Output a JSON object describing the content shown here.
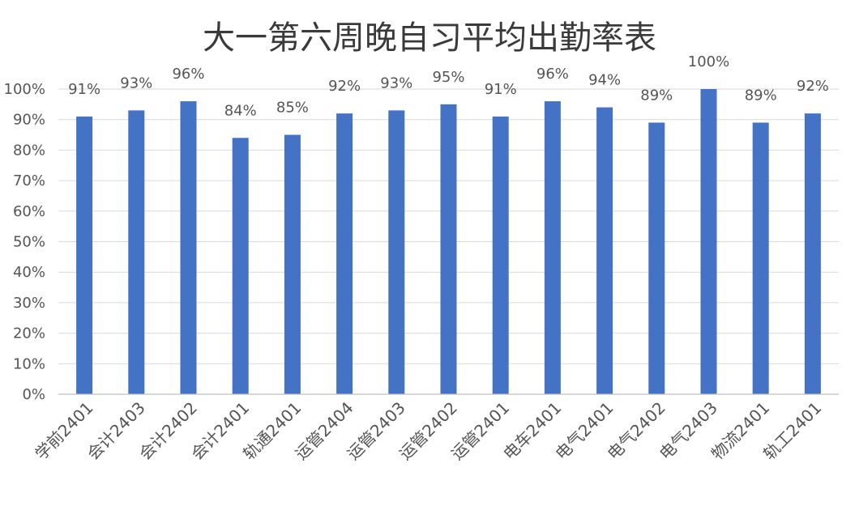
{
  "chart_data": {
    "type": "bar",
    "title": "大一第六周晚自习平均出勤率表",
    "xlabel": "",
    "ylabel": "",
    "categories": [
      "学前2401",
      "会计2403",
      "会计2402",
      "会计2401",
      "轨通2401",
      "运管2404",
      "运管2403",
      "运管2402",
      "运管2401",
      "电车2401",
      "电气2401",
      "电气2402",
      "电气2403",
      "物流2401",
      "轨工2401"
    ],
    "values": [
      91,
      93,
      96,
      84,
      85,
      92,
      93,
      95,
      91,
      96,
      94,
      89,
      100,
      89,
      92
    ],
    "data_labels": [
      "91%",
      "93%",
      "96%",
      "84%",
      "85%",
      "92%",
      "93%",
      "95%",
      "91%",
      "96%",
      "94%",
      "89%",
      "100%",
      "89%",
      "92%"
    ],
    "ylim": [
      0,
      100
    ],
    "yticks": [
      "0%",
      "10%",
      "20%",
      "30%",
      "40%",
      "50%",
      "60%",
      "70%",
      "80%",
      "90%",
      "100%"
    ],
    "bar_color": "#4472C4",
    "grid": true,
    "legend": "none"
  }
}
